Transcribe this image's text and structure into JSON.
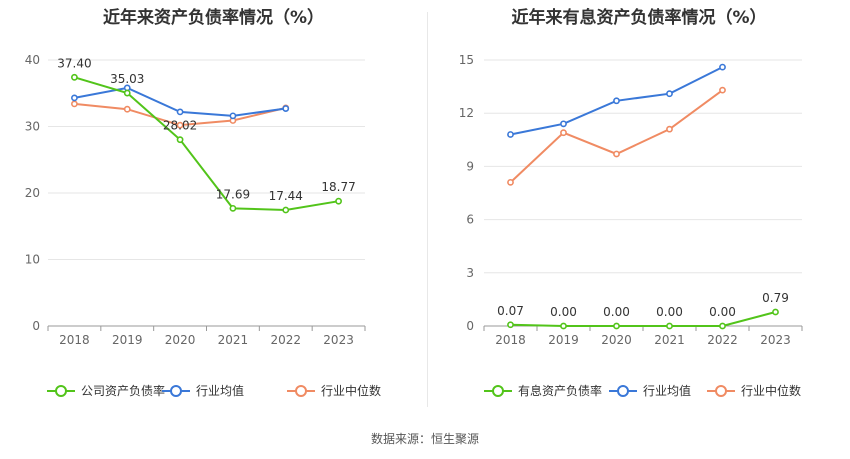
{
  "source_label": "数据来源：恒生聚源",
  "chart_data": [
    {
      "type": "line",
      "title": "近年来资产负债率情况（%）",
      "x": [
        "2018",
        "2019",
        "2020",
        "2021",
        "2022",
        "2023"
      ],
      "ylim": [
        0,
        40
      ],
      "yticks": [
        "0",
        "10",
        "20",
        "30",
        "40"
      ],
      "grid": true,
      "legend_position": "bottom",
      "series": [
        {
          "name": "公司资产负债率",
          "color": "#52c41a",
          "values": [
            37.4,
            35.03,
            28.02,
            17.69,
            17.44,
            18.77
          ],
          "labels": [
            "37.40",
            "35.03",
            "28.02",
            "17.69",
            "17.44",
            "18.77"
          ]
        },
        {
          "name": "行业均值",
          "color": "#3a78d8",
          "values": [
            34.3,
            35.8,
            32.2,
            31.6,
            32.7,
            null
          ]
        },
        {
          "name": "行业中位数",
          "color": "#f08b63",
          "values": [
            33.4,
            32.6,
            30.2,
            30.9,
            32.8,
            null
          ]
        }
      ]
    },
    {
      "type": "line",
      "title": "近年来有息资产负债率情况（%）",
      "x": [
        "2018",
        "2019",
        "2020",
        "2021",
        "2022",
        "2023"
      ],
      "ylim": [
        0,
        15
      ],
      "yticks": [
        "0",
        "3",
        "6",
        "9",
        "12",
        "15"
      ],
      "grid": true,
      "legend_position": "bottom",
      "series": [
        {
          "name": "有息资产负债率",
          "color": "#52c41a",
          "values": [
            0.07,
            0.0,
            0.0,
            0.0,
            0.0,
            0.79
          ],
          "labels": [
            "0.07",
            "0.00",
            "0.00",
            "0.00",
            "0.00",
            "0.79"
          ]
        },
        {
          "name": "行业均值",
          "color": "#3a78d8",
          "values": [
            10.8,
            11.4,
            12.7,
            13.1,
            14.6,
            null
          ]
        },
        {
          "name": "行业中位数",
          "color": "#f08b63",
          "values": [
            8.1,
            10.9,
            9.7,
            11.1,
            13.3,
            null
          ]
        }
      ]
    }
  ]
}
